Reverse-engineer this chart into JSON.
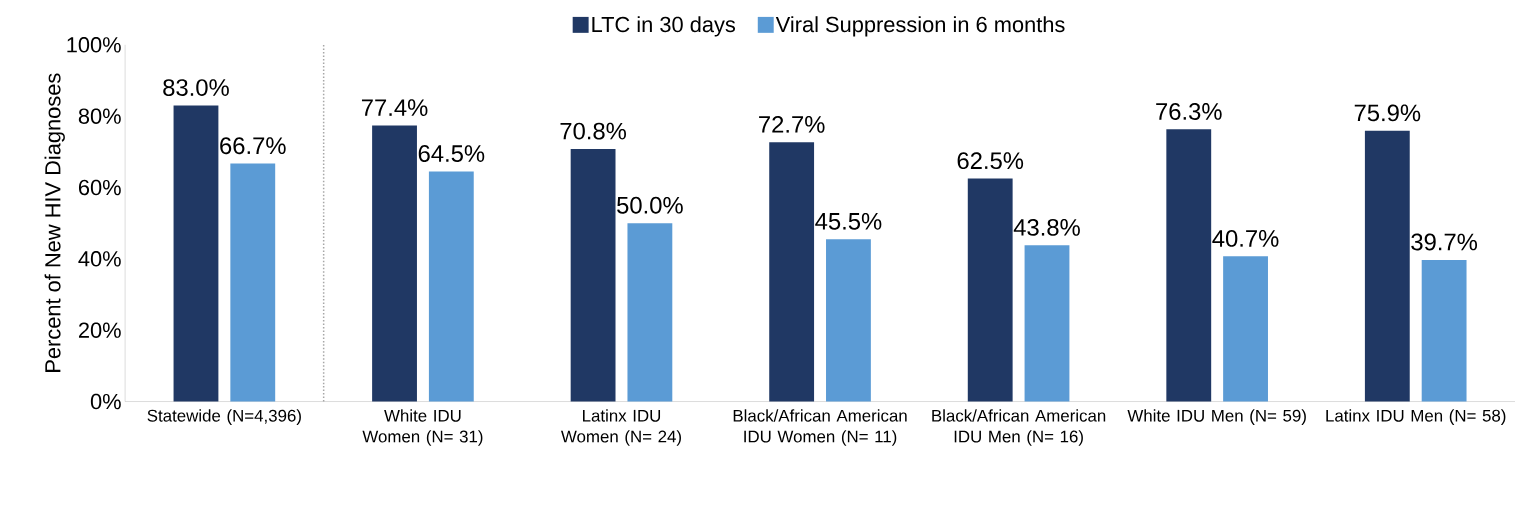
{
  "chart_data": {
    "type": "bar",
    "ylabel": "Percent of New HIV Diagnoses",
    "categories": [
      "Statewide (N=4,396)",
      "White IDU Women (N= 31)",
      "Latinx IDU Women (N= 24)",
      "Black/African American IDU Women (N= 11)",
      "Black/African American IDU Men (N= 16)",
      "White IDU Men (N= 59)",
      "Latinx IDU Men (N= 58)"
    ],
    "series": [
      {
        "name": "LTC in 30 days",
        "color": "#203864",
        "values": [
          83.0,
          77.4,
          70.8,
          72.7,
          62.5,
          76.3,
          75.9
        ],
        "value_labels": [
          "83.0%",
          "77.4%",
          "70.8%",
          "72.7%",
          "62.5%",
          "76.3%",
          "75.9%"
        ]
      },
      {
        "name": "Viral Suppression in 6 months",
        "color": "#5b9bd5",
        "values": [
          66.7,
          64.5,
          50.0,
          45.5,
          43.8,
          40.7,
          39.7
        ],
        "value_labels": [
          "66.7%",
          "64.5%",
          "50.0%",
          "45.5%",
          "43.8%",
          "40.7%",
          "39.7%"
        ]
      }
    ],
    "ylim": [
      0,
      100
    ],
    "yticks": [
      {
        "value": 0,
        "label": "0%"
      },
      {
        "value": 20,
        "label": "20%"
      },
      {
        "value": 40,
        "label": "40%"
      },
      {
        "value": 60,
        "label": "60%"
      },
      {
        "value": 80,
        "label": "80%"
      },
      {
        "value": 100,
        "label": "100%"
      }
    ],
    "grid": false,
    "legend": "top"
  }
}
